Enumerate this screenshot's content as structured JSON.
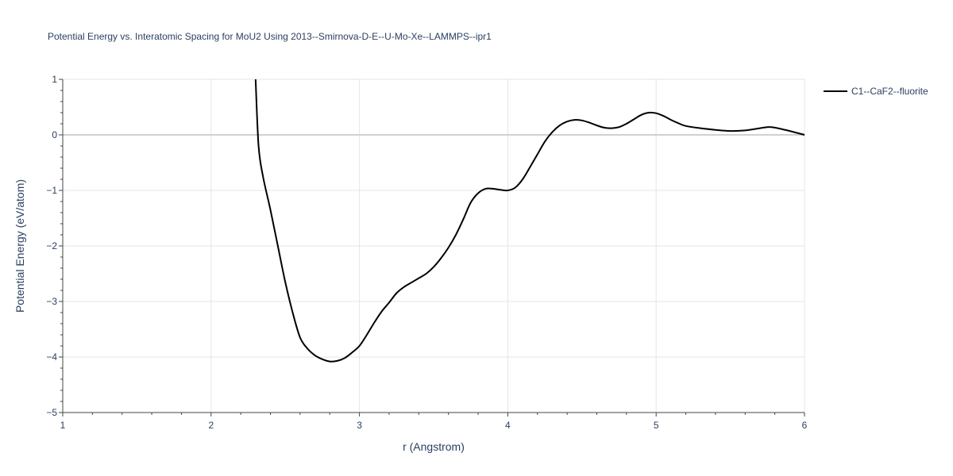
{
  "chart_data": {
    "type": "line",
    "title": "Potential Energy vs. Interatomic Spacing for MoU2 Using 2013--Smirnova-D-E--U-Mo-Xe--LAMMPS--ipr1",
    "xlabel": "r (Angstrom)",
    "ylabel": "Potential Energy (eV/atom)",
    "xlim": [
      1,
      6
    ],
    "ylim": [
      -5,
      1
    ],
    "xticks": [
      1,
      2,
      3,
      4,
      5,
      6
    ],
    "yticks": [
      -5,
      -4,
      -3,
      -2,
      -1,
      0,
      1
    ],
    "xtick_labels": [
      "1",
      "2",
      "3",
      "4",
      "5",
      "6"
    ],
    "ytick_labels": [
      "−5",
      "−4",
      "−3",
      "−2",
      "−1",
      "0",
      "1"
    ],
    "grid": true,
    "legend_position": "top-right",
    "colors": {
      "line": "#000000",
      "grid": "#e5e5e5",
      "zeroline": "#d0d0d0",
      "text": "#2a3f5f"
    },
    "series": [
      {
        "name": "C1--CaF2--fluorite",
        "x": [
          2.3,
          2.32,
          2.35,
          2.4,
          2.45,
          2.5,
          2.55,
          2.6,
          2.65,
          2.7,
          2.75,
          2.8,
          2.85,
          2.9,
          2.95,
          3.0,
          3.05,
          3.1,
          3.15,
          3.2,
          3.25,
          3.3,
          3.35,
          3.4,
          3.45,
          3.5,
          3.55,
          3.6,
          3.65,
          3.7,
          3.75,
          3.8,
          3.85,
          3.9,
          3.95,
          4.0,
          4.05,
          4.1,
          4.15,
          4.2,
          4.25,
          4.3,
          4.35,
          4.4,
          4.45,
          4.5,
          4.55,
          4.6,
          4.65,
          4.7,
          4.75,
          4.8,
          4.85,
          4.9,
          4.95,
          5.0,
          5.05,
          5.1,
          5.15,
          5.2,
          5.3,
          5.4,
          5.5,
          5.6,
          5.7,
          5.75,
          5.8,
          5.9,
          6.0
        ],
        "y": [
          1.0,
          -0.2,
          -0.75,
          -1.35,
          -2.0,
          -2.65,
          -3.2,
          -3.65,
          -3.85,
          -3.97,
          -4.04,
          -4.08,
          -4.07,
          -4.02,
          -3.92,
          -3.8,
          -3.6,
          -3.38,
          -3.18,
          -3.02,
          -2.85,
          -2.74,
          -2.66,
          -2.58,
          -2.5,
          -2.38,
          -2.22,
          -2.03,
          -1.8,
          -1.52,
          -1.22,
          -1.05,
          -0.97,
          -0.97,
          -0.99,
          -1.0,
          -0.95,
          -0.8,
          -0.58,
          -0.35,
          -0.12,
          0.05,
          0.17,
          0.24,
          0.27,
          0.26,
          0.22,
          0.17,
          0.13,
          0.12,
          0.14,
          0.2,
          0.28,
          0.36,
          0.4,
          0.39,
          0.34,
          0.27,
          0.21,
          0.16,
          0.12,
          0.09,
          0.07,
          0.08,
          0.12,
          0.14,
          0.13,
          0.07,
          0.0
        ]
      }
    ]
  }
}
